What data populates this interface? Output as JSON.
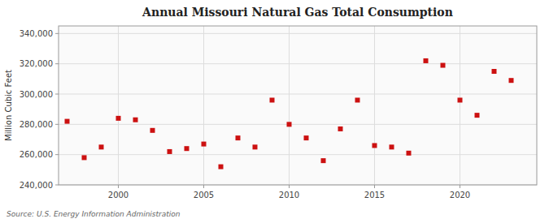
{
  "chart_data": {
    "type": "scatter",
    "title": "Annual Missouri Natural Gas Total Consumption",
    "ylabel": "Million Cubic Feet",
    "annotations": [
      "Source: U.S. Energy Information Administration"
    ],
    "color": "#cc1111",
    "marker": "square",
    "grid": true,
    "xlim": [
      1996.5,
      2024.5
    ],
    "ylim": [
      240000,
      345000
    ],
    "xticks": [
      2000,
      2005,
      2010,
      2015,
      2020
    ],
    "yticks": [
      {
        "value": 240000,
        "label": "240,000"
      },
      {
        "value": 260000,
        "label": "260,000"
      },
      {
        "value": 280000,
        "label": "280,000"
      },
      {
        "value": 300000,
        "label": "300,000"
      },
      {
        "value": 320000,
        "label": "320,000"
      },
      {
        "value": 340000,
        "label": "340,000"
      }
    ],
    "x": [
      1997,
      1998,
      1999,
      2000,
      2001,
      2002,
      2003,
      2004,
      2005,
      2006,
      2007,
      2008,
      2009,
      2010,
      2011,
      2012,
      2013,
      2014,
      2015,
      2016,
      2017,
      2018,
      2019,
      2020,
      2021,
      2022,
      2023
    ],
    "values": [
      282000,
      258000,
      265000,
      284000,
      283000,
      276000,
      262000,
      264000,
      267000,
      252000,
      271000,
      265000,
      296000,
      280000,
      271000,
      256000,
      277000,
      296000,
      266000,
      265000,
      261000,
      322000,
      319000,
      296000,
      286000,
      315000,
      309000
    ]
  }
}
